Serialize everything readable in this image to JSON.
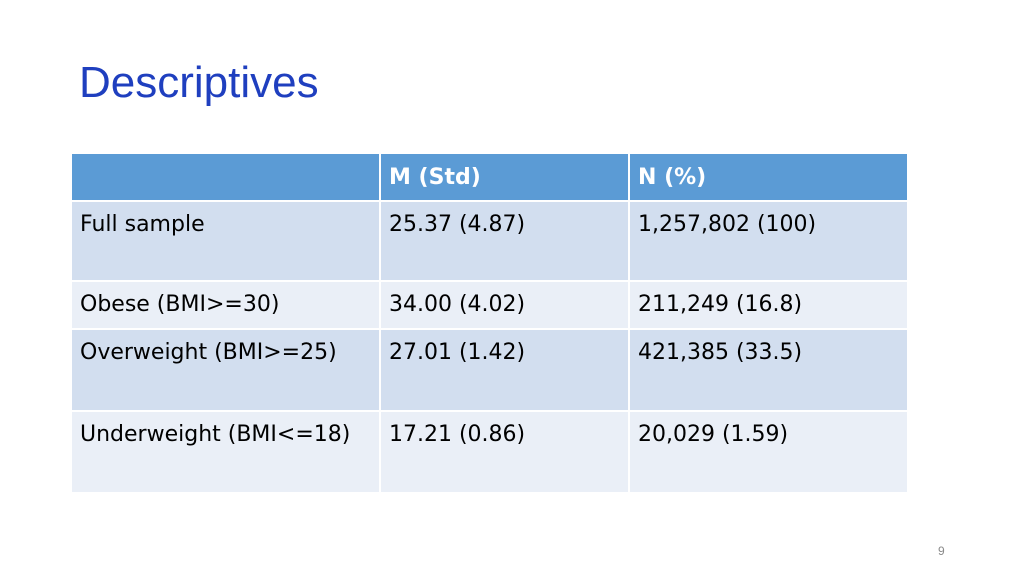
{
  "header": {
    "title": "Descriptives"
  },
  "table": {
    "columns": [
      "",
      "M (Std)",
      "N (%)"
    ],
    "rows": [
      [
        "Full sample",
        "25.37 (4.87)",
        "1,257,802 (100)"
      ],
      [
        "Obese (BMI>=30)",
        "34.00 (4.02)",
        "211,249 (16.8)"
      ],
      [
        "Overweight (BMI>=25)",
        "27.01 (1.42)",
        "421,385 (33.5)"
      ],
      [
        "Underweight (BMI<=18)",
        "17.21 (0.86)",
        "20,029 (1.59)"
      ]
    ]
  },
  "footer": {
    "page_number": "9"
  }
}
